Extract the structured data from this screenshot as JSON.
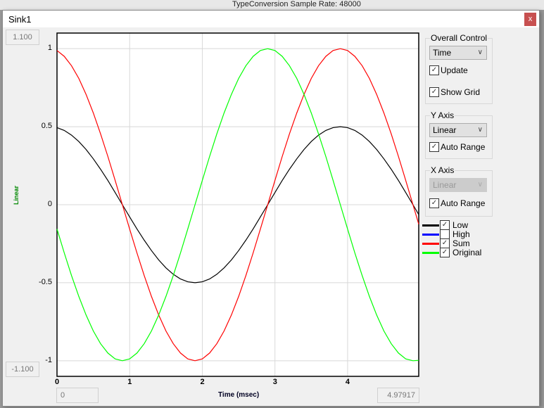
{
  "background": {
    "text": "TypeConversion  Sample Rate: 48000"
  },
  "window": {
    "title": "Sink1",
    "close_label": "x"
  },
  "y_max_box": "1.100",
  "y_min_box": "-1.100",
  "x_min_box": "0",
  "x_max_box": "4.97917",
  "controls": {
    "overall": {
      "label": "Overall Control",
      "select": "Time",
      "update": "Update",
      "update_checked": true,
      "grid": "Show Grid",
      "grid_checked": true
    },
    "yaxis": {
      "label": "Y Axis",
      "select": "Linear",
      "auto": "Auto Range",
      "auto_checked": true
    },
    "xaxis": {
      "label": "X Axis",
      "select": "Linear",
      "select_disabled": true,
      "auto": "Auto Range",
      "auto_checked": true
    }
  },
  "legend": [
    {
      "name": "Low",
      "color": "#000000",
      "checked": true
    },
    {
      "name": "High",
      "color": "#0000ff",
      "checked": false
    },
    {
      "name": "Sum",
      "color": "#ff0000",
      "checked": true
    },
    {
      "name": "Original",
      "color": "#00ff00",
      "checked": true
    }
  ],
  "chart_data": {
    "type": "line",
    "xlabel": "Time (msec)",
    "ylabel": "Linear",
    "grid": true,
    "xlim": [
      0,
      4.97917
    ],
    "ylim": [
      -1.1,
      1.1
    ],
    "xticks": [
      "0",
      "1",
      "2",
      "3",
      "4"
    ],
    "yticks": [
      "1",
      "0.5",
      "0",
      "-0.5",
      "-1"
    ],
    "x": [
      0,
      0.1,
      0.2,
      0.3,
      0.4,
      0.5,
      0.6,
      0.7,
      0.8,
      0.9,
      1.0,
      1.1,
      1.2,
      1.3,
      1.4,
      1.5,
      1.6,
      1.7,
      1.8,
      1.9,
      2.0,
      2.1,
      2.2,
      2.3,
      2.4,
      2.5,
      2.6,
      2.7,
      2.8,
      2.9,
      3.0,
      3.1,
      3.2,
      3.3,
      3.4,
      3.5,
      3.6,
      3.7,
      3.8,
      3.9,
      4.0,
      4.1,
      4.2,
      4.3,
      4.4,
      4.5,
      4.6,
      4.7,
      4.8,
      4.9,
      4.979
    ],
    "series": [
      {
        "name": "Low",
        "color": "#000000",
        "values": [
          0.494,
          0.476,
          0.446,
          0.405,
          0.354,
          0.294,
          0.227,
          0.155,
          0.078,
          0,
          -0.078,
          -0.155,
          -0.227,
          -0.294,
          -0.354,
          -0.405,
          -0.446,
          -0.476,
          -0.494,
          -0.5,
          -0.494,
          -0.476,
          -0.446,
          -0.405,
          -0.354,
          -0.294,
          -0.227,
          -0.155,
          -0.078,
          0,
          0.078,
          0.155,
          0.227,
          0.294,
          0.354,
          0.405,
          0.446,
          0.476,
          0.494,
          0.5,
          0.494,
          0.476,
          0.446,
          0.405,
          0.354,
          0.294,
          0.227,
          0.155,
          0.078,
          0,
          -0.063
        ]
      },
      {
        "name": "Sum",
        "color": "#ff0000",
        "values": [
          0.988,
          0.951,
          0.891,
          0.809,
          0.707,
          0.588,
          0.454,
          0.309,
          0.156,
          0,
          -0.156,
          -0.309,
          -0.454,
          -0.588,
          -0.707,
          -0.809,
          -0.891,
          -0.951,
          -0.988,
          -1,
          -0.988,
          -0.951,
          -0.891,
          -0.809,
          -0.707,
          -0.588,
          -0.454,
          -0.309,
          -0.156,
          0,
          0.156,
          0.309,
          0.454,
          0.588,
          0.707,
          0.809,
          0.891,
          0.951,
          0.988,
          1,
          0.988,
          0.951,
          0.891,
          0.809,
          0.707,
          0.588,
          0.454,
          0.309,
          0.156,
          0,
          -0.125
        ]
      },
      {
        "name": "Original",
        "color": "#00ff00",
        "values": [
          -0.156,
          -0.309,
          -0.454,
          -0.588,
          -0.707,
          -0.809,
          -0.891,
          -0.951,
          -0.988,
          -1,
          -0.988,
          -0.951,
          -0.891,
          -0.809,
          -0.707,
          -0.588,
          -0.454,
          -0.309,
          -0.156,
          0,
          0.156,
          0.309,
          0.454,
          0.588,
          0.707,
          0.809,
          0.891,
          0.951,
          0.988,
          1,
          0.988,
          0.951,
          0.891,
          0.809,
          0.707,
          0.588,
          0.454,
          0.309,
          0.156,
          0,
          -0.156,
          -0.309,
          -0.454,
          -0.588,
          -0.707,
          -0.809,
          -0.891,
          -0.951,
          -0.988,
          -1,
          -0.997
        ]
      }
    ]
  }
}
